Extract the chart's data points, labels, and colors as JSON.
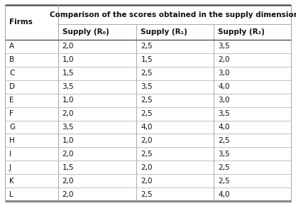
{
  "title": "Comparison of the scores obtained in the supply dimension",
  "firms_label": "Firms",
  "col_headers": [
    "Supply (R₀)",
    "Supply (R₁)",
    "Supply (R₂)"
  ],
  "rows": [
    [
      "A",
      "2,0",
      "2,5",
      "3,5"
    ],
    [
      "B",
      "1,0",
      "1,5",
      "2,0"
    ],
    [
      "C",
      "1,5",
      "2,5",
      "3,0"
    ],
    [
      "D",
      "3,5",
      "3,5",
      "4,0"
    ],
    [
      "E",
      "1,0",
      "2,5",
      "3,0"
    ],
    [
      "F",
      "2,0",
      "2,5",
      "3,5"
    ],
    [
      "G",
      "3,5",
      "4,0",
      "4,0"
    ],
    [
      "H",
      "1,0",
      "2,0",
      "2,5"
    ],
    [
      "I",
      "2,0",
      "2,5",
      "3,5"
    ],
    [
      "J",
      "1,5",
      "2,0",
      "2,5"
    ],
    [
      "K",
      "2,0",
      "2,0",
      "2,5"
    ],
    [
      "L",
      "2,0",
      "2,5",
      "4,0"
    ]
  ],
  "background_color": "#ffffff",
  "line_color": "#aaaaaa",
  "thick_line_color": "#555555",
  "text_color": "#111111",
  "font_size": 7.5,
  "header_font_size": 7.5
}
